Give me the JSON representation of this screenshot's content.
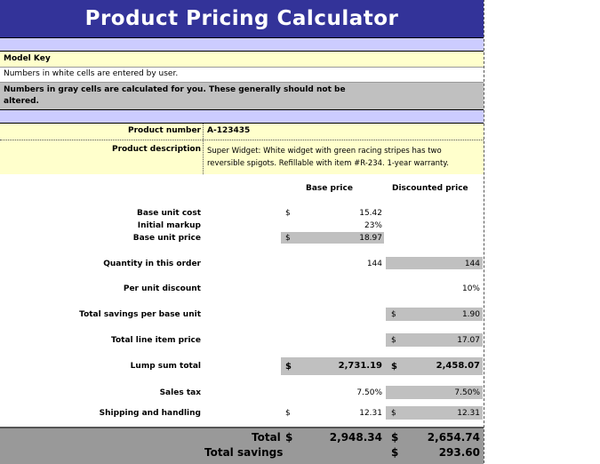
{
  "title": "Product Pricing Calculator",
  "model_key": {
    "heading": "Model Key",
    "white_note": "Numbers in white cells are entered by user.",
    "gray_note_line1": "Numbers in gray cells are calculated for you. These generally should not be",
    "gray_note_line2": "altered."
  },
  "product": {
    "number_label": "Product number",
    "number_value": "A-123435",
    "description_label": "Product description",
    "description_value": "Super Widget: White widget with green racing stripes has two reversible spigots. Refillable with item #R-234. 1-year warranty."
  },
  "columns": {
    "base": "Base price",
    "discounted": "Discounted price"
  },
  "rows": {
    "base_unit_cost": {
      "label": "Base unit cost",
      "currency": "$",
      "base": "15.42"
    },
    "initial_markup": {
      "label": "Initial markup",
      "base": "23%"
    },
    "base_unit_price": {
      "label": "Base unit price",
      "currency": "$",
      "base": "18.97"
    },
    "quantity": {
      "label": "Quantity in this order",
      "base": "144",
      "discounted": "144"
    },
    "per_unit_discount": {
      "label": "Per unit discount",
      "discounted": "10%"
    },
    "total_savings_unit": {
      "label": "Total savings per base unit",
      "currency": "$",
      "discounted": "1.90"
    },
    "total_line_item": {
      "label": "Total line item price",
      "currency": "$",
      "discounted": "17.07"
    },
    "lump_sum": {
      "label": "Lump sum total",
      "currency": "$",
      "base": "2,731.19",
      "discounted": "2,458.07"
    },
    "sales_tax": {
      "label": "Sales tax",
      "base": "7.50%",
      "discounted": "7.50%"
    },
    "shipping": {
      "label": "Shipping and handling",
      "currency": "$",
      "base": "12.31",
      "discounted": "12.31"
    }
  },
  "totals": {
    "total_label": "Total",
    "currency": "$",
    "total_base": "2,948.34",
    "total_discounted": "2,654.74",
    "savings_label": "Total savings",
    "savings_value": "293.60"
  },
  "colors": {
    "title_bg": "#333399",
    "lavender": "#ccccff",
    "yellow": "#ffffcc",
    "gray": "#c0c0c0",
    "dark_gray": "#999999"
  }
}
